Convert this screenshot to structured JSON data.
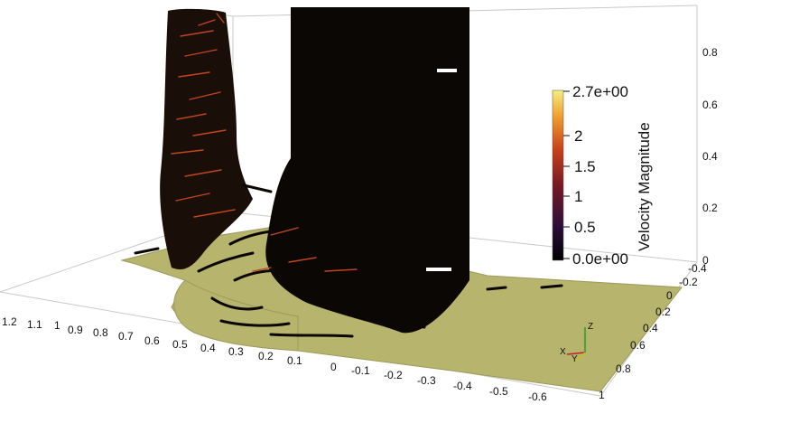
{
  "scalar_bar": {
    "title": "Velocity Magnitude",
    "labels": [
      "2.7e+00",
      "2",
      "1.5",
      "1",
      "0.5",
      "0.0e+00"
    ],
    "colormap": [
      "#000000",
      "#3a0f4a",
      "#8b1a1a",
      "#d84a12",
      "#f2a23a",
      "#f7f08c"
    ]
  },
  "axes": {
    "x_ticks": [
      "1.2",
      "1.1",
      "1",
      "0.9",
      "0.8",
      "0.7",
      "0.6",
      "0.5",
      "0.4",
      "0.3",
      "0.2",
      "0.1",
      "0",
      "-0.1",
      "-0.2",
      "-0.3",
      "-0.4",
      "-0.5",
      "-0.6"
    ],
    "y_ticks": [
      "-0.4",
      "-0.2",
      "0",
      "0.2",
      "0.4",
      "0.6",
      "0.8",
      "1"
    ],
    "z_ticks": [
      "0.8",
      "0.6",
      "0.4",
      "0.2",
      "0"
    ]
  },
  "orientation_axes": {
    "x": "X",
    "y": "Y",
    "z": "Z"
  },
  "colors": {
    "floor": "#b7b46e",
    "floor_edge": "#9c9a5a",
    "fluid": "#0b0705",
    "streak_hot": "#c2461c",
    "background": "#ffffff"
  }
}
